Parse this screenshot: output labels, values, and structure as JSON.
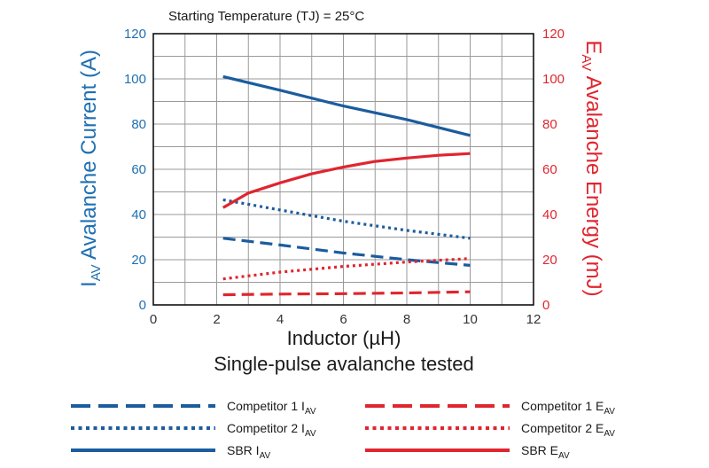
{
  "chart_data": {
    "type": "line",
    "title": "Starting Temperature (TJ) = 25°C",
    "xlabel": "Inductor (µH)",
    "subtitle": "Single-pulse avalanche tested",
    "ylabel_left": {
      "main": "I",
      "sub": "AV",
      "rest": " Avalanche Current (A)"
    },
    "ylabel_right": {
      "main": "E",
      "sub": "AV",
      "rest": " Avalanche Energy (mJ)"
    },
    "xlim": [
      0,
      12
    ],
    "ylim_left": [
      0,
      120
    ],
    "ylim_right": [
      0,
      120
    ],
    "x_ticks": [
      "0",
      "2",
      "4",
      "6",
      "8",
      "10",
      "12"
    ],
    "y_ticks_left": [
      "0",
      "20",
      "40",
      "60",
      "80",
      "100",
      "120"
    ],
    "y_ticks_right": [
      "0",
      "20",
      "40",
      "60",
      "80",
      "100",
      "120"
    ],
    "grid": true,
    "colors": {
      "blue": "#1b5c9e",
      "red": "#e0252f",
      "blue_text": "#1f6fb2"
    },
    "series": [
      {
        "name": "Competitor 1",
        "sub": "AV",
        "prefix": "I",
        "axis": "left",
        "color": "#1b5c9e",
        "style": "dashed",
        "x": [
          2.2,
          4,
          6,
          8,
          10
        ],
        "y": [
          29.5,
          26.5,
          23,
          20,
          17.5
        ]
      },
      {
        "name": "Competitor 2",
        "sub": "AV",
        "prefix": "I",
        "axis": "left",
        "color": "#1b5c9e",
        "style": "dotted",
        "x": [
          2.2,
          4,
          6,
          8,
          10
        ],
        "y": [
          46.5,
          42,
          37,
          33,
          29.5
        ]
      },
      {
        "name": "SBR",
        "sub": "AV",
        "prefix": "I",
        "axis": "left",
        "color": "#1b5c9e",
        "style": "solid",
        "x": [
          2.2,
          4,
          6,
          8,
          10
        ],
        "y": [
          101,
          95,
          88,
          82,
          75
        ]
      },
      {
        "name": "Competitor 1",
        "sub": "AV",
        "prefix": "E",
        "axis": "right",
        "color": "#e0252f",
        "style": "dashed",
        "x": [
          2.2,
          4,
          6,
          8,
          10
        ],
        "y": [
          4.5,
          4.8,
          5,
          5.3,
          5.8
        ]
      },
      {
        "name": "Competitor 2",
        "sub": "AV",
        "prefix": "E",
        "axis": "right",
        "color": "#e0252f",
        "style": "dotted",
        "x": [
          2.2,
          4,
          6,
          8,
          10
        ],
        "y": [
          11.5,
          14.5,
          17,
          19,
          20.5
        ]
      },
      {
        "name": "SBR",
        "sub": "AV",
        "prefix": "E",
        "axis": "right",
        "color": "#e0252f",
        "style": "solid",
        "x": [
          2.2,
          3,
          4,
          5,
          6,
          7,
          8,
          9,
          10
        ],
        "y": [
          43,
          49.5,
          54,
          58,
          61,
          63.5,
          65,
          66.2,
          67
        ]
      }
    ],
    "legend": [
      {
        "label": "Competitor 1 I",
        "sub": "AV",
        "color": "#1b5c9e",
        "style": "dashed"
      },
      {
        "label": "Competitor 1 E",
        "sub": "AV",
        "color": "#e0252f",
        "style": "dashed"
      },
      {
        "label": "Competitor 2 I",
        "sub": "AV",
        "color": "#1b5c9e",
        "style": "dotted"
      },
      {
        "label": "Competitor 2 E",
        "sub": "AV",
        "color": "#e0252f",
        "style": "dotted"
      },
      {
        "label": "SBR  I",
        "sub": "AV",
        "color": "#1b5c9e",
        "style": "solid"
      },
      {
        "label": "SBR  E",
        "sub": "AV",
        "color": "#e0252f",
        "style": "solid"
      }
    ]
  }
}
